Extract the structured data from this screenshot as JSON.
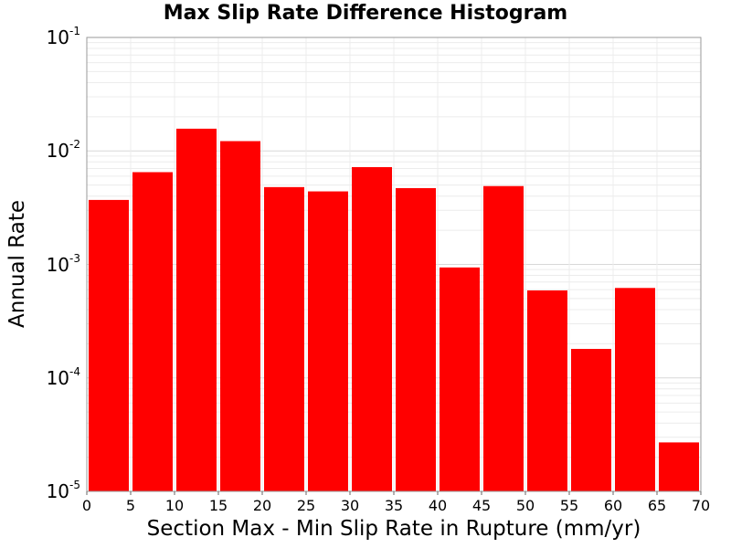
{
  "chart_data": {
    "type": "bar",
    "title": "Max Slip Rate Difference Histogram",
    "xlabel": "Section Max - Min Slip Rate in Rupture (mm/yr)",
    "ylabel": "Annual Rate",
    "xlim": [
      0,
      70
    ],
    "ylim": [
      1e-05,
      0.1
    ],
    "yscale": "log",
    "x_ticks": [
      "0",
      "5",
      "10",
      "15",
      "20",
      "25",
      "30",
      "35",
      "40",
      "45",
      "50",
      "55",
      "60",
      "65",
      "70"
    ],
    "y_ticks": [
      {
        "base": "10",
        "exp": "-1",
        "value": 0.1
      },
      {
        "base": "10",
        "exp": "-2",
        "value": 0.01
      },
      {
        "base": "10",
        "exp": "-3",
        "value": 0.001
      },
      {
        "base": "10",
        "exp": "-4",
        "value": 0.0001
      },
      {
        "base": "10",
        "exp": "-5",
        "value": 1e-05
      }
    ],
    "bin_width": 5,
    "bin_starts": [
      0,
      5,
      10,
      15,
      20,
      25,
      30,
      35,
      40,
      45,
      50,
      55,
      60,
      65
    ],
    "values": [
      0.0037,
      0.0065,
      0.0157,
      0.0122,
      0.0048,
      0.0044,
      0.0072,
      0.0047,
      0.00094,
      0.0049,
      0.00059,
      0.00018,
      0.00062,
      2.7e-05
    ],
    "bar_color": "#ff0000",
    "grid": true
  }
}
